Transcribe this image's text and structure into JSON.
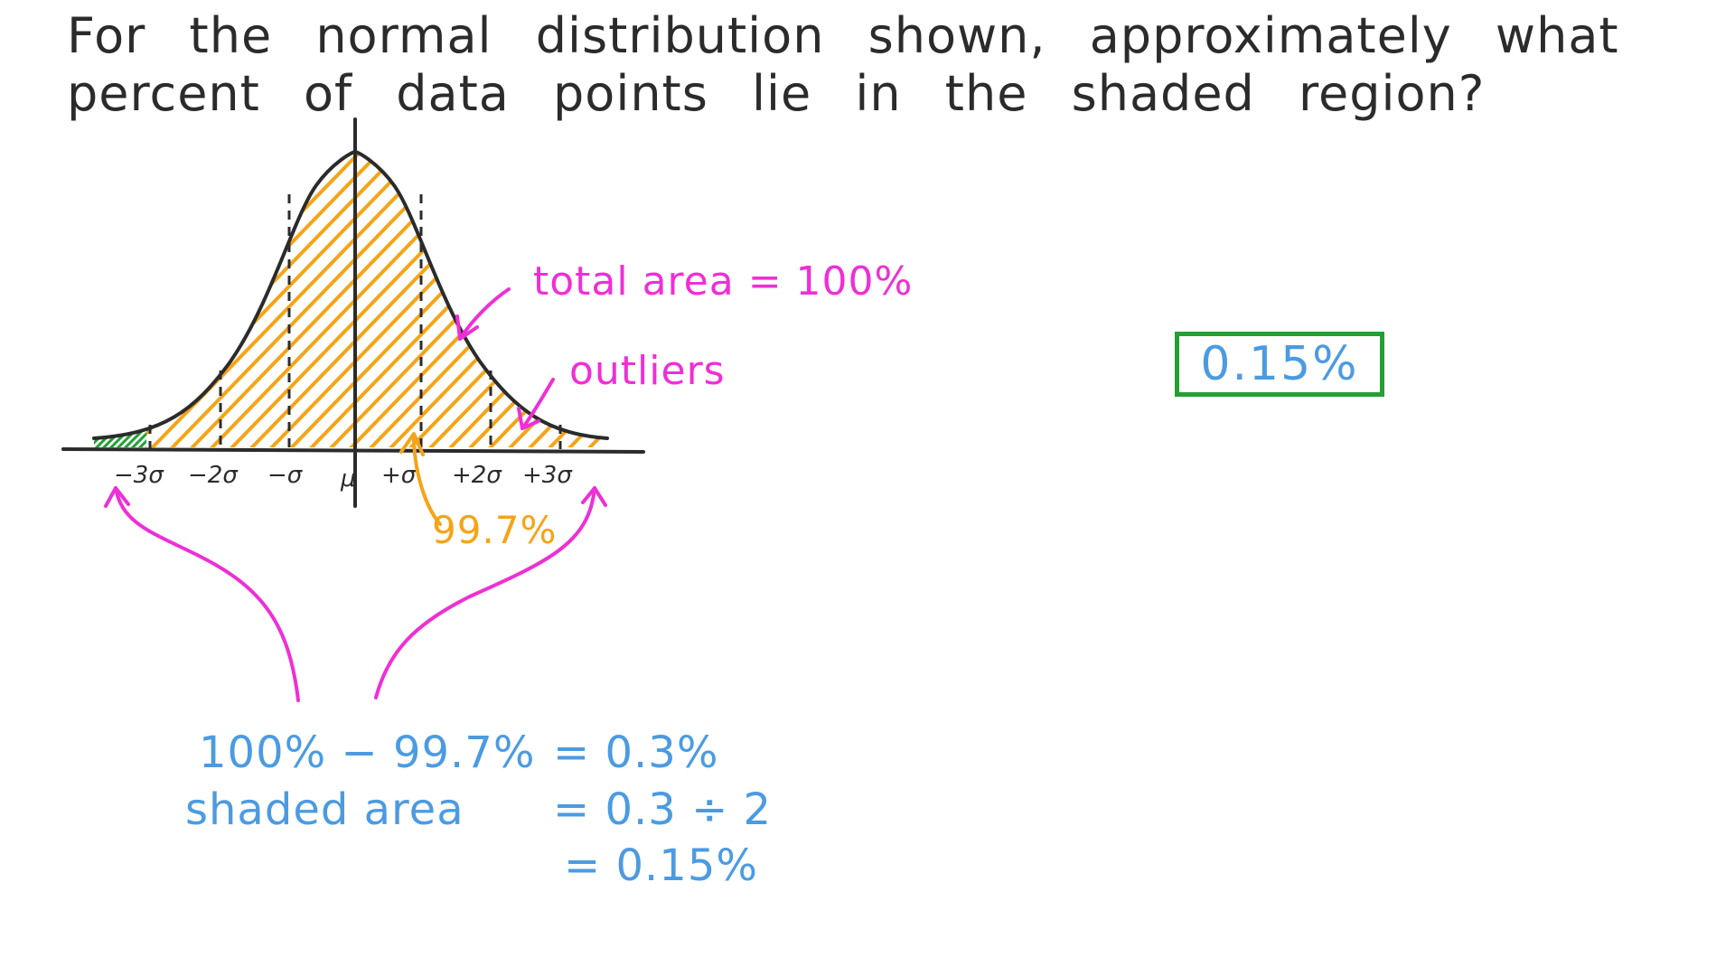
{
  "question": {
    "line1": "For the normal distribution shown, approximately what",
    "line2": "percent of data points lie in the shaded region?"
  },
  "axis_labels": [
    "−3σ",
    "−2σ",
    "−σ",
    "μ",
    "+σ",
    "+2σ",
    "+3σ"
  ],
  "annotations": {
    "total_area": "total area = 100%",
    "outliers": "outliers",
    "within_3sd": "99.7%"
  },
  "working": {
    "line1_left": "100% − 99.7%",
    "line1_right": "= 0.3%",
    "line2_left": "shaded area",
    "line2_right": "= 0.3 ÷ 2",
    "line3_right": "= 0.15%"
  },
  "answer": "0.15%",
  "colors": {
    "ink": "#2b2b2b",
    "hatch_orange": "#f5a417",
    "shaded_green": "#22a034",
    "annotation_pink": "#ee2fd6",
    "working_blue": "#4b9be2",
    "answer_border": "#22a034"
  }
}
